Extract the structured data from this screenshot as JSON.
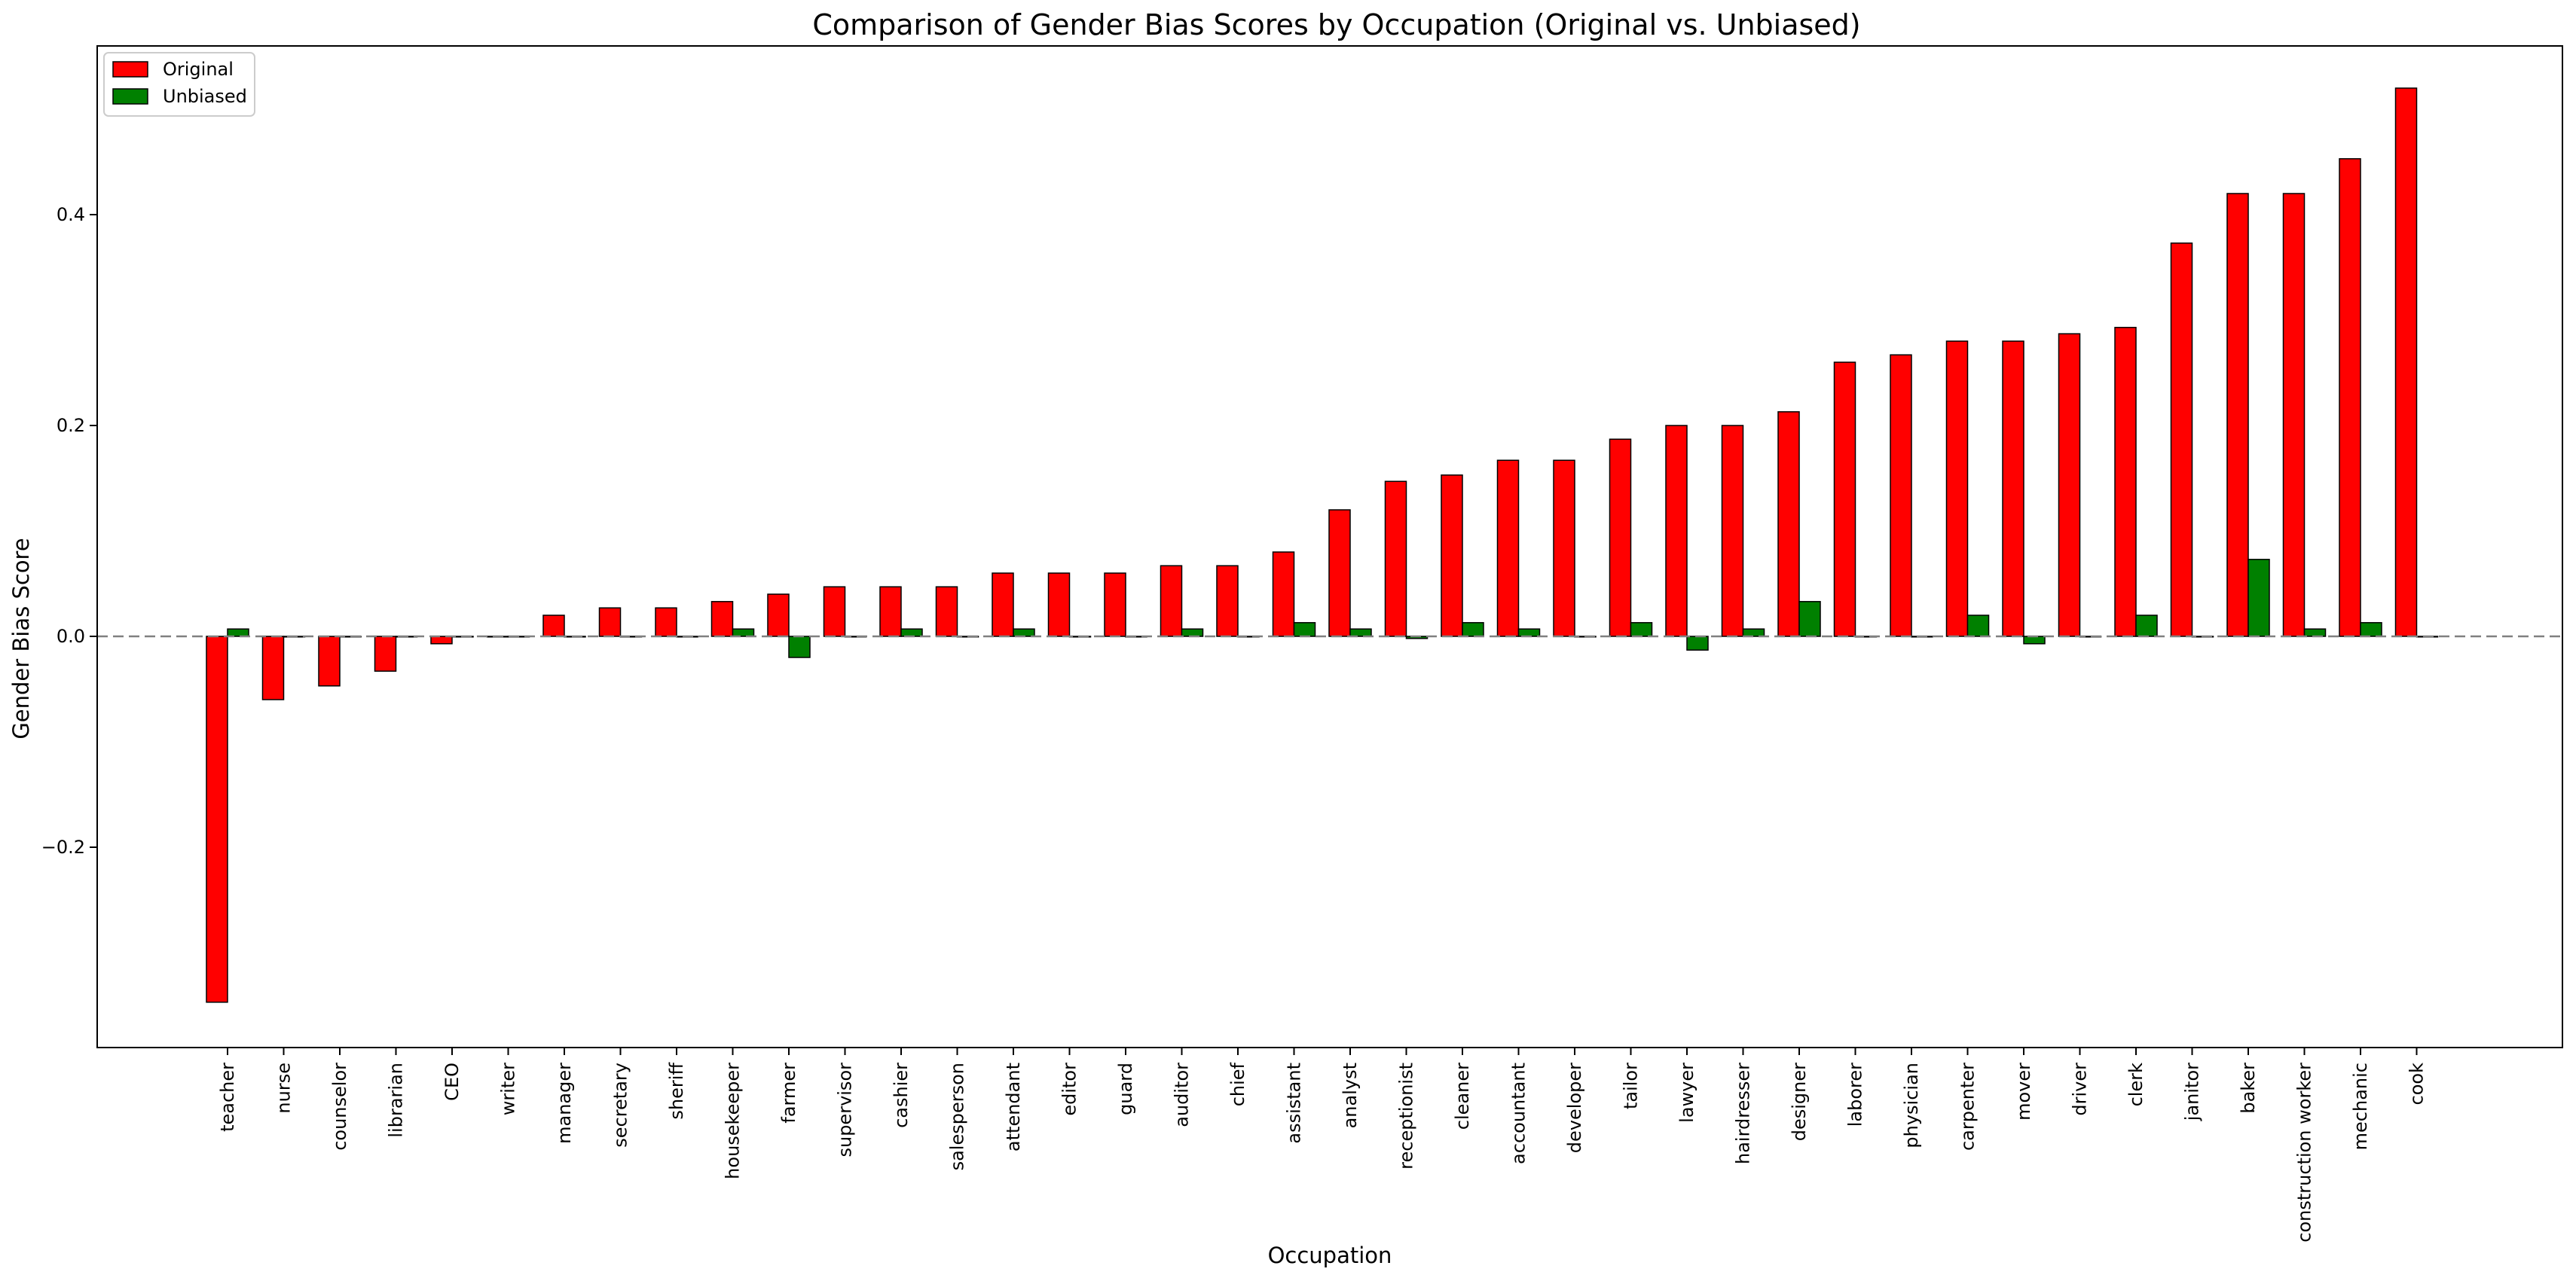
{
  "chart_data": {
    "type": "bar",
    "title": "Comparison of Gender Bias Scores by Occupation (Original vs. Unbiased)",
    "xlabel": "Occupation",
    "ylabel": "Gender Bias Score",
    "ylim": [
      -0.39,
      0.56
    ],
    "yticks": [
      -0.2,
      0.0,
      0.2,
      0.4
    ],
    "ytick_labels": [
      "−0.2",
      "0.0",
      "0.2",
      "0.4"
    ],
    "grid": false,
    "legend_placement": "top-left",
    "reference_line": {
      "y": 0.0,
      "style": "dashed",
      "color": "#808080"
    },
    "categories": [
      "teacher",
      "nurse",
      "counselor",
      "librarian",
      "CEO",
      "writer",
      "manager",
      "secretary",
      "sheriff",
      "housekeeper",
      "farmer",
      "supervisor",
      "cashier",
      "salesperson",
      "attendant",
      "editor",
      "guard",
      "auditor",
      "chief",
      "assistant",
      "analyst",
      "receptionist",
      "cleaner",
      "accountant",
      "developer",
      "tailor",
      "lawyer",
      "hairdresser",
      "designer",
      "laborer",
      "physician",
      "carpenter",
      "mover",
      "driver",
      "clerk",
      "janitor",
      "baker",
      "construction worker",
      "mechanic",
      "cook"
    ],
    "series": [
      {
        "name": "Original",
        "color": "#ff0000",
        "values": [
          -0.347,
          -0.06,
          -0.047,
          -0.033,
          -0.007,
          0.0,
          0.02,
          0.027,
          0.027,
          0.033,
          0.04,
          0.047,
          0.047,
          0.047,
          0.06,
          0.06,
          0.06,
          0.067,
          0.067,
          0.08,
          0.12,
          0.147,
          0.153,
          0.167,
          0.167,
          0.187,
          0.2,
          0.2,
          0.213,
          0.26,
          0.267,
          0.28,
          0.28,
          0.287,
          0.293,
          0.373,
          0.42,
          0.42,
          0.453,
          0.52
        ]
      },
      {
        "name": "Unbiased",
        "color": "#008000",
        "values": [
          0.007,
          0.0,
          0.0,
          0.0,
          0.0,
          0.0,
          0.0,
          0.0,
          0.0,
          0.007,
          -0.02,
          0.0,
          0.007,
          0.0,
          0.007,
          0.0,
          0.0,
          0.007,
          0.0,
          0.013,
          0.007,
          -0.002,
          0.013,
          0.007,
          0.0,
          0.013,
          -0.013,
          0.007,
          0.033,
          0.0,
          0.0,
          0.02,
          -0.007,
          0.0,
          0.02,
          0.0,
          0.073,
          0.007,
          0.013,
          0.0
        ]
      }
    ]
  }
}
